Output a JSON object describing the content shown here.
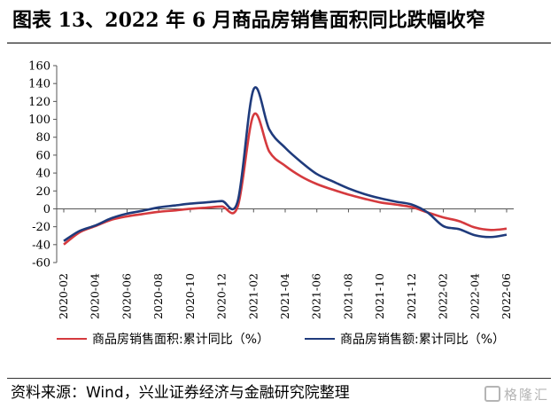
{
  "title": "图表 13、2022 年 6 月商品房销售面积同比跌幅收窄",
  "source": "资料来源：Wind，兴业证券经济与金融研究院整理",
  "watermark": "格隆汇",
  "colors": {
    "area": "#d53a3e",
    "amount": "#1f3b7c"
  },
  "chart_data": {
    "type": "line",
    "ylim": [
      -60,
      160
    ],
    "yticks": [
      -60,
      -40,
      -20,
      0,
      20,
      40,
      60,
      80,
      100,
      120,
      140,
      160
    ],
    "xtick_labels": [
      "2020-02",
      "2020-04",
      "2020-06",
      "2020-08",
      "2020-10",
      "2020-12",
      "2021-02",
      "2021-04",
      "2021-06",
      "2021-08",
      "2021-10",
      "2021-12",
      "2022-02",
      "2022-04",
      "2022-06"
    ],
    "x": [
      "2020-02",
      "2020-03",
      "2020-04",
      "2020-05",
      "2020-06",
      "2020-07",
      "2020-08",
      "2020-09",
      "2020-10",
      "2020-11",
      "2020-12",
      "2021-01",
      "2021-02",
      "2021-03",
      "2021-04",
      "2021-05",
      "2021-06",
      "2021-07",
      "2021-08",
      "2021-09",
      "2021-10",
      "2021-11",
      "2021-12",
      "2022-01",
      "2022-02",
      "2022-03",
      "2022-04",
      "2022-05",
      "2022-06"
    ],
    "series": [
      {
        "name": "商品房销售面积:累计同比（%）",
        "color": "#d53a3e",
        "values": [
          -39.9,
          -26.3,
          -19.3,
          -12.3,
          -8.4,
          -5.8,
          -3.3,
          -1.8,
          0.0,
          1.3,
          2.6,
          2.6,
          104.9,
          63.8,
          48.1,
          36.3,
          27.7,
          21.5,
          15.9,
          11.3,
          7.2,
          4.8,
          1.9,
          -4.0,
          -9.6,
          -13.8,
          -20.9,
          -23.6,
          -22.2
        ]
      },
      {
        "name": "商品房销售额:累计同比（%）",
        "color": "#1f3b7c",
        "values": [
          -35.9,
          -24.7,
          -18.6,
          -10.6,
          -5.4,
          -2.1,
          1.6,
          3.7,
          5.8,
          7.2,
          8.7,
          8.7,
          133.4,
          88.5,
          68.2,
          52.4,
          38.9,
          30.7,
          22.8,
          16.6,
          11.8,
          8.0,
          4.8,
          -4.0,
          -19.3,
          -22.7,
          -29.5,
          -31.5,
          -28.9
        ]
      }
    ]
  }
}
